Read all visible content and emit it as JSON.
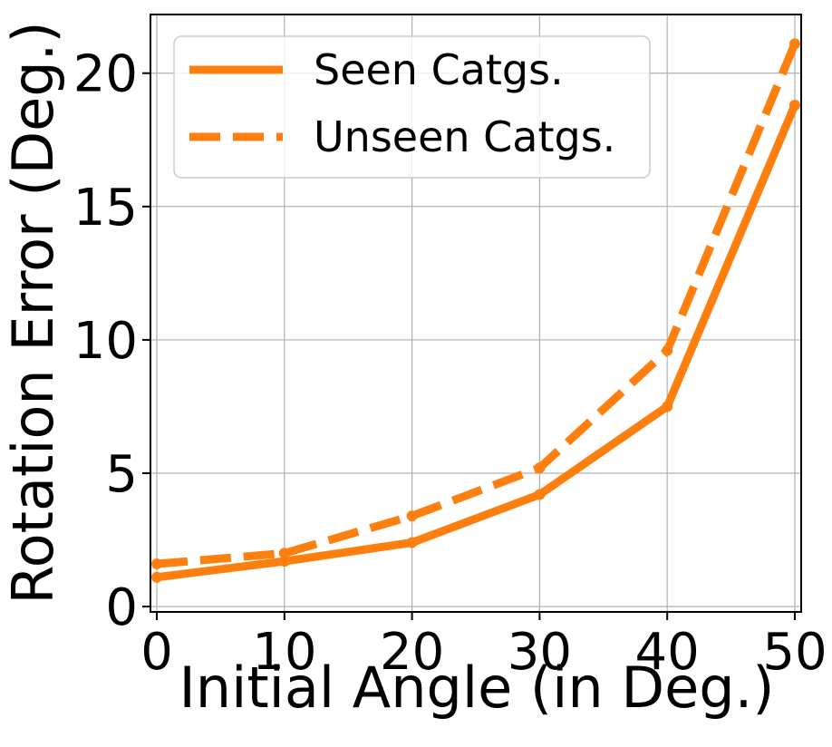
{
  "chart_data": {
    "type": "line",
    "xlabel": "Initial Angle (in Deg.)",
    "ylabel": "Rotation Error (Deg.)",
    "x": [
      0,
      10,
      20,
      30,
      40,
      50
    ],
    "xticks": [
      "0",
      "10",
      "20",
      "30",
      "40",
      "50"
    ],
    "yticks": [
      "0",
      "5",
      "10",
      "15",
      "20"
    ],
    "xlim": [
      -0.5,
      50.5
    ],
    "ylim": [
      -0.2,
      22.2
    ],
    "grid": true,
    "legend_position": "top-left",
    "color": "#ff7f0e",
    "series": [
      {
        "name": "Seen Catgs.",
        "linestyle": "solid",
        "values": [
          1.1,
          1.7,
          2.4,
          4.2,
          7.5,
          18.8
        ]
      },
      {
        "name": "Unseen Catgs.",
        "linestyle": "dashed",
        "values": [
          1.6,
          2.0,
          3.4,
          5.2,
          9.6,
          21.1
        ]
      }
    ]
  }
}
